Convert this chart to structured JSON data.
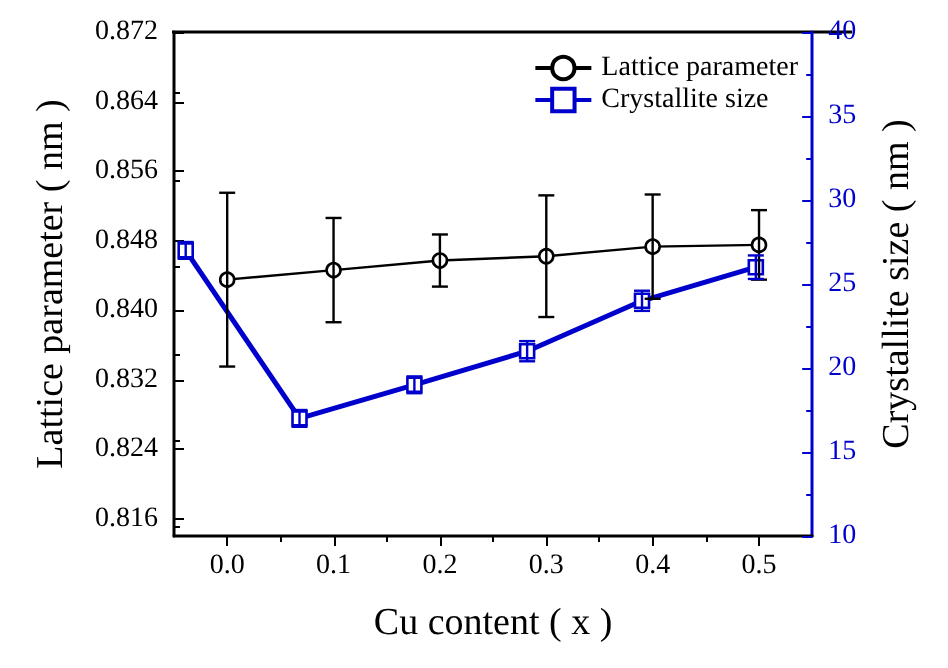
{
  "chart_data": {
    "type": "line",
    "xlabel": "Cu content ( x )",
    "ylabel": "Lattice parameter ( nm )",
    "y2label": "Crystallite size ( nm )",
    "xlim": [
      -0.05,
      0.55
    ],
    "xticks": [
      {
        "value": 0,
        "label": "0.0"
      },
      0.1,
      0.2,
      0.3,
      0.4,
      0.5
    ],
    "ylim": [
      0.814,
      0.872
    ],
    "yticks": [
      0.816,
      0.824,
      0.832,
      {
        "value": 0.84,
        "label": "0.840"
      },
      0.848,
      0.856,
      0.864,
      0.872
    ],
    "y2lim": [
      10,
      40
    ],
    "y2ticks": [
      10,
      15,
      20,
      25,
      30,
      35,
      40
    ],
    "legend": "top right",
    "grid": false,
    "series": [
      {
        "name": "Lattice parameter",
        "color": "#000000",
        "marker": "circle",
        "x": [
          0.0,
          0.1,
          0.2,
          0.3,
          0.4,
          0.5
        ],
        "values": [
          0.8435,
          0.8446,
          0.8457,
          0.8462,
          0.8473,
          0.8475
        ],
        "errors": [
          0.01,
          0.006,
          0.003,
          0.007,
          0.006,
          0.004
        ]
      },
      {
        "name": "Crystallite size",
        "color": "#0000cc",
        "marker": "square",
        "axis": "y2",
        "x": [
          -0.039,
          0.068,
          0.176,
          0.282,
          0.39,
          0.497
        ],
        "values": [
          27,
          17,
          19,
          21,
          24,
          26
        ],
        "errors": [
          0.5,
          0.5,
          0.5,
          0.6,
          0.6,
          0.7
        ]
      }
    ]
  }
}
